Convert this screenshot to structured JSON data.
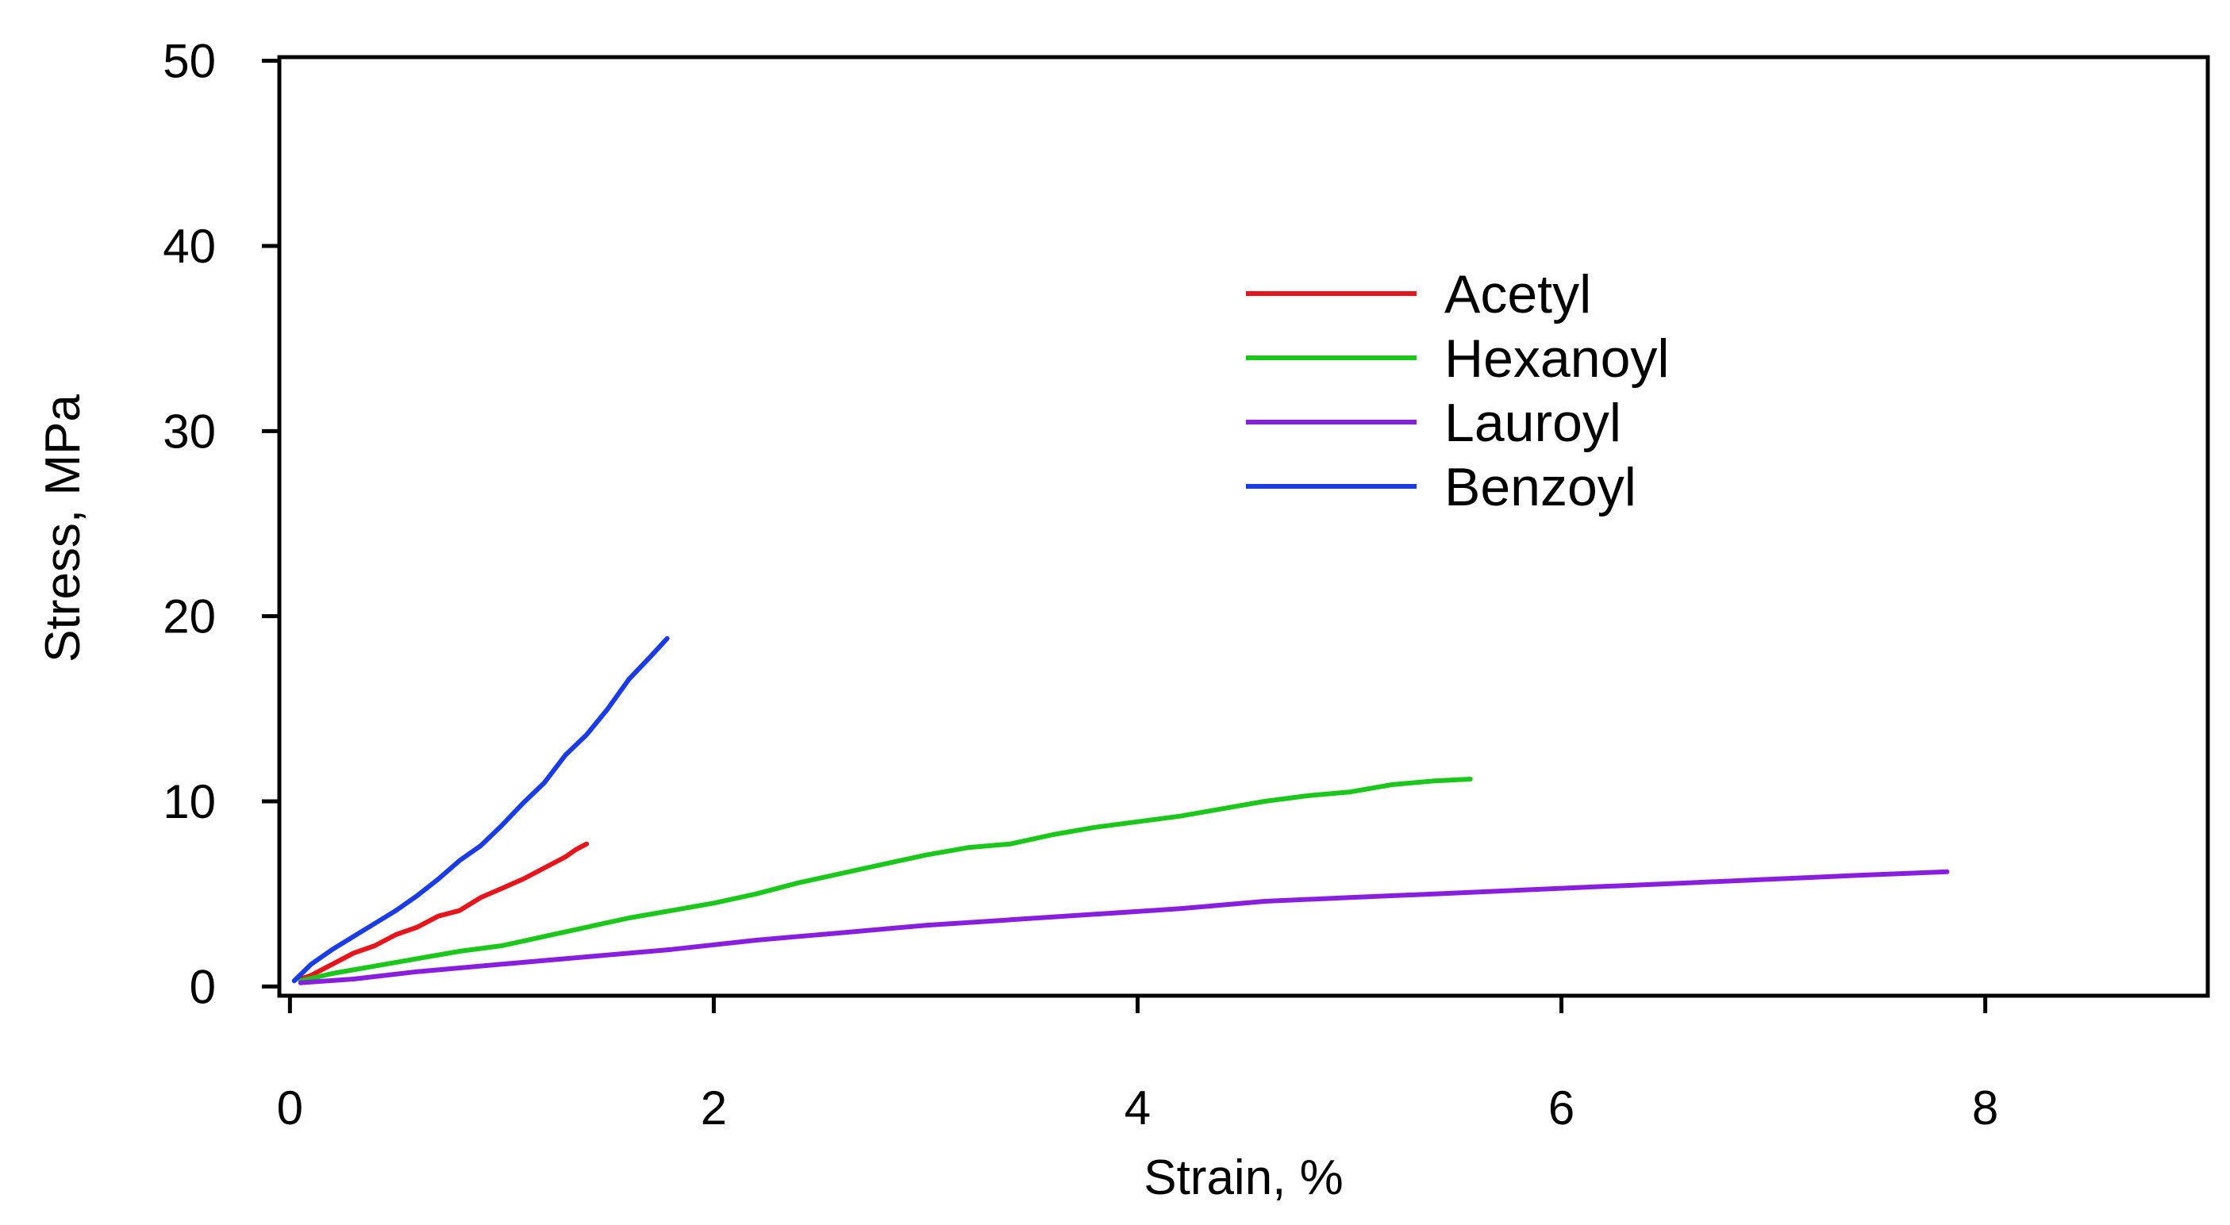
{
  "chart_data": {
    "type": "line",
    "title": "",
    "xlabel": "Strain, %",
    "ylabel": "Stress, MPa",
    "xlim": [
      -0.05,
      9.05
    ],
    "ylim": [
      -0.5,
      50.2
    ],
    "x_ticks": [
      0,
      2,
      4,
      6,
      8
    ],
    "y_ticks": [
      0,
      10,
      20,
      30,
      40,
      50
    ],
    "grid": false,
    "legend_position": "upper-center-right",
    "series": [
      {
        "name": "Acetyl",
        "color": "#e8141c",
        "x": [
          0.05,
          0.1,
          0.2,
          0.3,
          0.4,
          0.5,
          0.6,
          0.7,
          0.8,
          0.9,
          1.0,
          1.1,
          1.2,
          1.3,
          1.35,
          1.4
        ],
        "y": [
          0.4,
          0.6,
          1.2,
          1.8,
          2.2,
          2.8,
          3.2,
          3.8,
          4.1,
          4.8,
          5.3,
          5.8,
          6.4,
          7.0,
          7.4,
          7.7
        ]
      },
      {
        "name": "Hexanoyl",
        "color": "#1ac81a",
        "x": [
          0.05,
          0.2,
          0.4,
          0.6,
          0.8,
          1.0,
          1.2,
          1.4,
          1.6,
          1.8,
          2.0,
          2.2,
          2.4,
          2.6,
          2.8,
          3.0,
          3.2,
          3.4,
          3.6,
          3.8,
          4.0,
          4.2,
          4.4,
          4.6,
          4.8,
          5.0,
          5.2,
          5.4,
          5.57
        ],
        "y": [
          0.3,
          0.7,
          1.1,
          1.5,
          1.9,
          2.2,
          2.7,
          3.2,
          3.7,
          4.1,
          4.5,
          5.0,
          5.6,
          6.1,
          6.6,
          7.1,
          7.5,
          7.7,
          8.2,
          8.6,
          8.9,
          9.2,
          9.6,
          10.0,
          10.3,
          10.5,
          10.9,
          11.1,
          11.2
        ]
      },
      {
        "name": "Lauroyl",
        "color": "#8a1ee0",
        "x": [
          0.05,
          0.3,
          0.6,
          1.0,
          1.4,
          1.8,
          2.2,
          2.6,
          3.0,
          3.4,
          3.8,
          4.2,
          4.6,
          5.0,
          5.4,
          5.8,
          6.2,
          6.6,
          7.0,
          7.4,
          7.82
        ],
        "y": [
          0.2,
          0.4,
          0.8,
          1.2,
          1.6,
          2.0,
          2.5,
          2.9,
          3.3,
          3.6,
          3.9,
          4.2,
          4.6,
          4.8,
          5.0,
          5.2,
          5.4,
          5.6,
          5.8,
          6.0,
          6.2
        ]
      },
      {
        "name": "Benzoyl",
        "color": "#1a3ce6",
        "x": [
          0.02,
          0.1,
          0.2,
          0.3,
          0.4,
          0.5,
          0.6,
          0.7,
          0.8,
          0.9,
          1.0,
          1.1,
          1.2,
          1.3,
          1.4,
          1.5,
          1.6,
          1.7,
          1.78
        ],
        "y": [
          0.3,
          1.2,
          2.0,
          2.7,
          3.4,
          4.1,
          4.9,
          5.8,
          6.8,
          7.6,
          8.7,
          9.9,
          11.0,
          12.5,
          13.6,
          15.0,
          16.6,
          17.8,
          18.8
        ]
      }
    ]
  }
}
